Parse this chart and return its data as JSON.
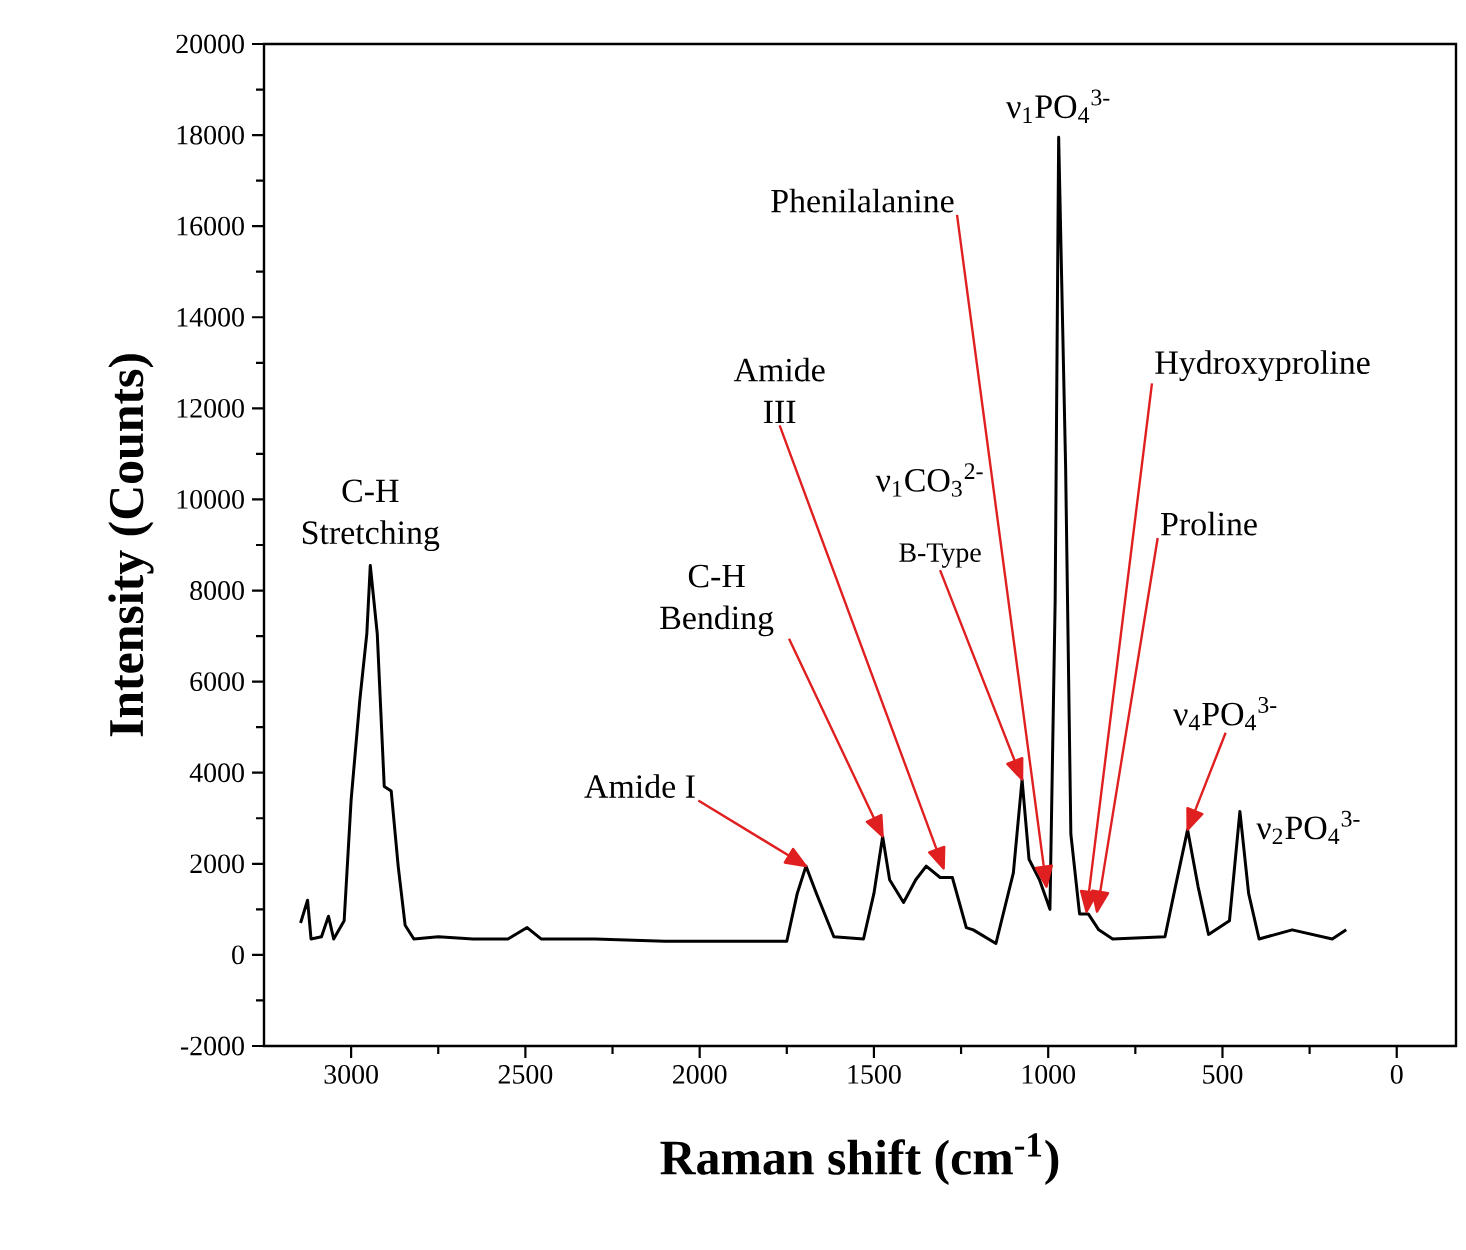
{
  "chart_data": {
    "type": "line",
    "xlabel": "Raman shift (cm$^{-1}$)",
    "ylabel": "Intensity (Counts)",
    "xlim": [
      3250,
      -170
    ],
    "ylim": [
      -2000,
      20000
    ],
    "xticks": [
      3000,
      2500,
      2000,
      1500,
      1000,
      500,
      0
    ],
    "yticks": [
      -2000,
      0,
      2000,
      4000,
      6000,
      8000,
      10000,
      12000,
      14000,
      16000,
      18000,
      20000
    ],
    "marker": "none",
    "line_style": "solid",
    "series": [
      {
        "color": "#000000",
        "x": [
          3145,
          3125,
          3115,
          3085,
          3065,
          3050,
          3020,
          3000,
          2975,
          2955,
          2945,
          2925,
          2905,
          2885,
          2865,
          2845,
          2820,
          2750,
          2650,
          2550,
          2495,
          2455,
          2300,
          2100,
          1900,
          1750,
          1720,
          1695,
          1665,
          1615,
          1530,
          1500,
          1475,
          1455,
          1415,
          1380,
          1350,
          1310,
          1275,
          1235,
          1215,
          1150,
          1100,
          1075,
          1055,
          1025,
          995,
          980,
          970,
          950,
          935,
          910,
          885,
          855,
          815,
          665,
          635,
          600,
          570,
          540,
          480,
          450,
          425,
          395,
          300,
          185,
          145
        ],
        "values": [
          700,
          1200,
          350,
          400,
          850,
          350,
          750,
          3400,
          5600,
          7050,
          8550,
          7050,
          3700,
          3600,
          1950,
          650,
          350,
          400,
          350,
          350,
          600,
          350,
          350,
          300,
          300,
          300,
          1350,
          1950,
          1350,
          400,
          350,
          1350,
          2600,
          1650,
          1150,
          1650,
          1950,
          1700,
          1700,
          600,
          550,
          250,
          1800,
          3850,
          2100,
          1650,
          1000,
          7800,
          17950,
          10700,
          2650,
          900,
          900,
          550,
          350,
          400,
          1500,
          2750,
          1500,
          450,
          750,
          3150,
          1350,
          350,
          550,
          350,
          550
        ]
      }
    ],
    "annotations": [
      {
        "text": "C-H Stretching",
        "x": 2945,
        "y": 8550
      },
      {
        "text": "Amide I",
        "x": 1695,
        "y": 1950
      },
      {
        "text": "C-H Bending",
        "x": 1475,
        "y": 2600
      },
      {
        "text": "Amide III",
        "x": 1300,
        "y": 1900
      },
      "ν$_{1}$CO$_{3}$$^{2-}$",
      {
        "text": "B-Type",
        "x": 1075,
        "y": 3850
      },
      {
        "text": "Phenilalanine",
        "x": 1005,
        "y": 1500
      },
      {
        "text": "ν$_{1}$PO$_{4}$$^{3-}$",
        "x": 970,
        "y": 17950
      },
      {
        "text": "Hydroxyproline",
        "x": 890,
        "y": 950
      },
      {
        "text": "Proline",
        "x": 860,
        "y": 950
      },
      {
        "text": "ν$_{4}$PO$_{4}$$^{3-}$",
        "x": 600,
        "y": 2750
      },
      {
        "text": "ν$_{2}$PO$_{4}$$^{3-}$",
        "x": 450,
        "y": 3150
      }
    ]
  }
}
